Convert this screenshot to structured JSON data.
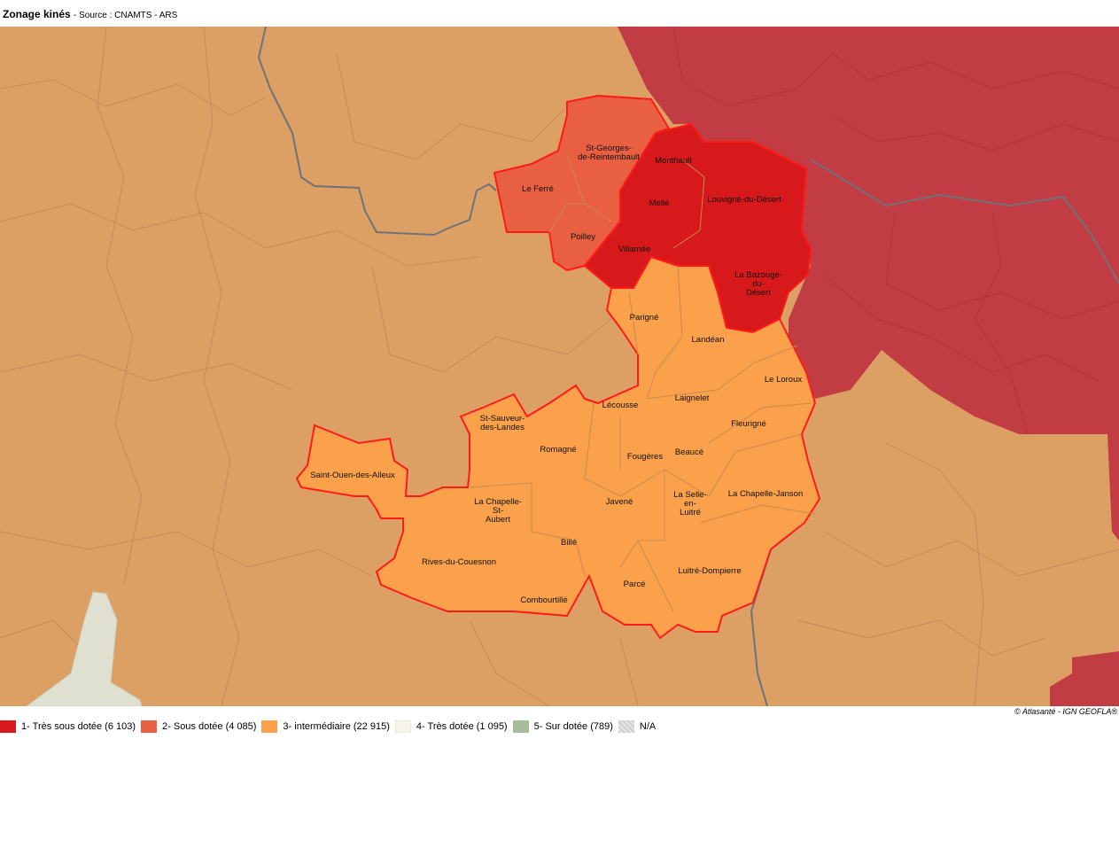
{
  "header": {
    "title": "Zonage kinés",
    "source": "- Source : CNAMTS - ARS"
  },
  "colors": {
    "class1": "#d7191c",
    "class2": "#e85f42",
    "class3": "#fba14b",
    "class4": "#f5f5ea",
    "class5": "#a6bd9c",
    "na": "#cfcfcf",
    "background_communes": "#dca065",
    "neighbour_region": "#c23c43",
    "selection_outline": "#ff1a1a"
  },
  "map": {
    "labels": [
      "St-Georges-\nde-Reintembault",
      "Le Ferré",
      "Monthault",
      "Mellé",
      "Louvigné-du-Désert",
      "Poilley",
      "Villamée",
      "La Bazouge-\ndu-\nDésert",
      "Parigné",
      "Landéan",
      "Le Loroux",
      "Lécousse",
      "Laignelet",
      "St-Sauveur-\ndes-Landes",
      "Fleurigné",
      "Romagné",
      "Fougères",
      "Beaucé",
      "Saint-Ouen-des-Alleux",
      "La Selle-\nen-\nLuitré",
      "La Chapelle-Janson",
      "La Chapelle-\nSt-\nAubert",
      "Javené",
      "Billé",
      "Rives-du-Couesnon",
      "Luitré-Dompierre",
      "Parcé",
      "Combourtillé"
    ]
  },
  "credit": "© Atlasanté - IGN GEOFLA®",
  "legend": [
    {
      "label": "1- Très sous dotée (6 103)",
      "color": "#d7191c"
    },
    {
      "label": "2- Sous dotée (4 085)",
      "color": "#e85f42"
    },
    {
      "label": "3- intermédiaire (22 915)",
      "color": "#fba14b"
    },
    {
      "label": "4- Très dotée (1 095)",
      "color": "#f5f5ea"
    },
    {
      "label": "5- Sur dotée (789)",
      "color": "#a6bd9c"
    },
    {
      "label": "N/A",
      "color": "#cfcfcf"
    }
  ]
}
